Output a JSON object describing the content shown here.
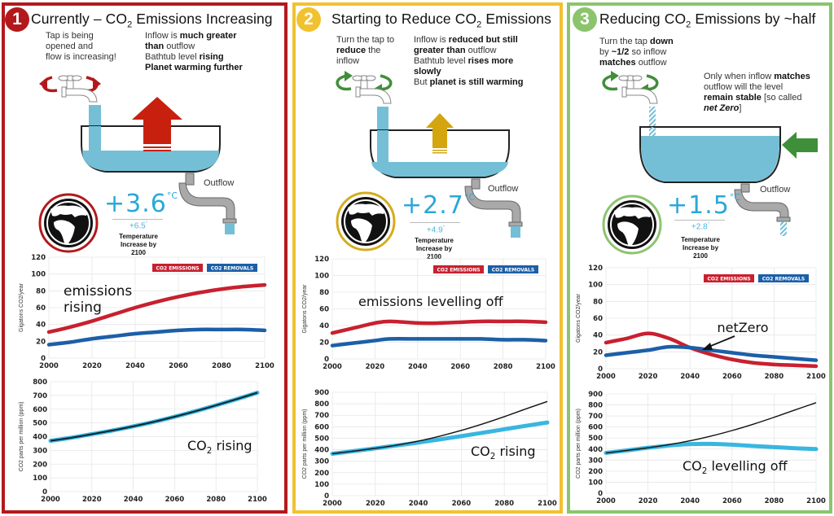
{
  "colors": {
    "panel1": "#b3191c",
    "panel2": "#f2c12e",
    "panel3": "#8cc46e",
    "emissions": "#c8202f",
    "removals": "#1c5fa8",
    "co2_line": "#38b6e0",
    "baseline": "#111111",
    "water": "#74bfd6",
    "temp": "#2aa8d8"
  },
  "panels": [
    {
      "number": "1",
      "title_pre": "Currently – CO",
      "title_sub": "2",
      "title_post": " Emissions Increasing",
      "tap_text": [
        "Tap is being",
        "opened and",
        "flow is increasing!"
      ],
      "desc": [
        [
          {
            "t": "Inflow is "
          },
          {
            "t": "much greater",
            "b": true
          }
        ],
        [
          {
            "t": "than",
            "b": true
          },
          {
            "t": " outflow"
          }
        ],
        [
          {
            "t": "Bathtub level "
          },
          {
            "t": "rising",
            "b": true
          }
        ],
        [
          {
            "t": "Planet warming further",
            "b": true
          }
        ]
      ],
      "outflow_label": "Outflow",
      "temp_main": "+3.6",
      "temp_unit": "°C",
      "temp_high": "+6.5",
      "temp_high_unit": "°",
      "temp_label": [
        "Temperature",
        "Increase by",
        "2100"
      ],
      "arrow_icon": "up-arrow-red"
    },
    {
      "number": "2",
      "title_pre": "Starting to Reduce CO",
      "title_sub": "2",
      "title_post": " Emissions",
      "tap_text": [
        [
          {
            "t": "Turn the tap to"
          }
        ],
        [
          {
            "t": "reduce",
            "b": true
          },
          {
            "t": " the"
          }
        ],
        [
          {
            "t": "inflow"
          }
        ]
      ],
      "desc": [
        [
          {
            "t": "Inflow is "
          },
          {
            "t": "reduced but still",
            "b": true
          }
        ],
        [
          {
            "t": "greater than",
            "b": true
          },
          {
            "t": " outflow"
          }
        ],
        [
          {
            "t": "Bathtub level "
          },
          {
            "t": "rises more",
            "b": true
          }
        ],
        [
          {
            "t": "slowly",
            "b": true
          }
        ],
        [
          {
            "t": "But "
          },
          {
            "t": "planet is still warming",
            "b": true
          }
        ]
      ],
      "outflow_label": "Outflow",
      "temp_main": "+2.7",
      "temp_unit": "°C",
      "temp_high": "+4.9",
      "temp_high_unit": "°",
      "temp_label": [
        "Temperature",
        "Increase by",
        "2100"
      ],
      "arrow_icon": "up-arrow-yellow"
    },
    {
      "number": "3",
      "title_pre": "Reducing CO",
      "title_sub": "2",
      "title_post": " Emissions by ~half",
      "tap_text": [
        [
          {
            "t": "Turn the tap "
          },
          {
            "t": "down",
            "b": true
          }
        ],
        [
          {
            "t": "by "
          },
          {
            "t": "~1/2",
            "b": true
          },
          {
            "t": " so  inflow"
          }
        ],
        [
          {
            "t": "matches",
            "b": true
          },
          {
            "t": " outflow"
          }
        ]
      ],
      "desc": [
        [
          {
            "t": "Only when inflow "
          },
          {
            "t": "matches",
            "b": true
          }
        ],
        [
          {
            "t": "outflow will the level"
          }
        ],
        [
          {
            "t": "remain stable",
            "b": true
          },
          {
            "t": " [so called"
          }
        ],
        [
          {
            "t": "net Zero",
            "b": true,
            "i": true
          },
          {
            "t": "]"
          }
        ]
      ],
      "outflow_label": "Outflow",
      "temp_main": "+1.5",
      "temp_unit": "°C",
      "temp_high": "+2.8",
      "temp_high_unit": "°",
      "temp_label": [
        "Temperature",
        "Increase by",
        "2100"
      ],
      "arrow_icon": "left-arrow-green"
    }
  ],
  "chart_data": [
    {
      "type": "line",
      "panel": 1,
      "ylabel": "Gigatons CO2/year",
      "xlim": [
        2000,
        2100
      ],
      "ylim": [
        0,
        120
      ],
      "xticks": [
        2000,
        2020,
        2040,
        2060,
        2080,
        2100
      ],
      "yticks": [
        0,
        20,
        40,
        60,
        80,
        100,
        120
      ],
      "grid": true,
      "legend": [
        "CO2 EMISSIONS",
        "CO2 REMOVALS"
      ],
      "legend_position": "top-right",
      "annotation": [
        "emissions",
        "rising"
      ],
      "x": [
        2000,
        2010,
        2020,
        2030,
        2040,
        2050,
        2060,
        2070,
        2080,
        2090,
        2100
      ],
      "series": [
        {
          "name": "CO2 EMISSIONS",
          "values": [
            31,
            37,
            44,
            52,
            60,
            67,
            73,
            78,
            82,
            85,
            87
          ]
        },
        {
          "name": "CO2 REMOVALS",
          "values": [
            16,
            19,
            23,
            26,
            29,
            31,
            33,
            34,
            34,
            34,
            33
          ]
        }
      ]
    },
    {
      "type": "line",
      "panel": 1,
      "ylabel": "CO2 parts per million (ppm)",
      "xlim": [
        2000,
        2100
      ],
      "ylim": [
        0,
        800
      ],
      "xticks": [
        2000,
        2020,
        2040,
        2060,
        2080,
        2100
      ],
      "yticks": [
        0,
        100,
        200,
        300,
        400,
        500,
        600,
        700,
        800
      ],
      "grid": true,
      "annotation_pre": "CO",
      "annotation_sub": "2",
      "annotation_post": " rising",
      "x": [
        2000,
        2010,
        2020,
        2030,
        2040,
        2050,
        2060,
        2070,
        2080,
        2090,
        2100
      ],
      "series": [
        {
          "name": "CO2 ppm",
          "values": [
            370,
            392,
            418,
            445,
            475,
            508,
            545,
            585,
            628,
            673,
            720
          ]
        }
      ]
    },
    {
      "type": "line",
      "panel": 2,
      "ylabel": "Gigatons CO2/year",
      "xlim": [
        2000,
        2100
      ],
      "ylim": [
        0,
        120
      ],
      "xticks": [
        2000,
        2020,
        2040,
        2060,
        2080,
        2100
      ],
      "yticks": [
        0,
        20,
        40,
        60,
        80,
        100,
        120
      ],
      "grid": true,
      "legend": [
        "CO2 EMISSIONS",
        "CO2 REMOVALS"
      ],
      "legend_position": "top-right",
      "annotation": [
        "emissions levelling off"
      ],
      "x": [
        2000,
        2010,
        2020,
        2027,
        2040,
        2050,
        2060,
        2070,
        2080,
        2090,
        2100
      ],
      "series": [
        {
          "name": "CO2 EMISSIONS",
          "values": [
            31,
            37,
            43,
            45,
            43,
            43,
            44,
            45,
            45,
            45,
            44
          ]
        },
        {
          "name": "CO2 REMOVALS",
          "values": [
            16,
            19,
            22,
            24,
            24,
            24,
            24,
            24,
            23,
            23,
            22
          ]
        }
      ]
    },
    {
      "type": "line",
      "panel": 2,
      "ylabel": "CO2 parts per million (ppm)",
      "xlim": [
        2000,
        2100
      ],
      "ylim": [
        0,
        900
      ],
      "xticks": [
        2000,
        2020,
        2040,
        2060,
        2080,
        2100
      ],
      "yticks": [
        0,
        100,
        200,
        300,
        400,
        500,
        600,
        700,
        800,
        900
      ],
      "grid": true,
      "annotation_pre": "CO",
      "annotation_sub": "2",
      "annotation_post": " rising",
      "x": [
        2000,
        2010,
        2020,
        2030,
        2040,
        2050,
        2060,
        2070,
        2080,
        2090,
        2100
      ],
      "series": [
        {
          "name": "CO2 ppm",
          "values": [
            365,
            388,
            412,
            437,
            462,
            490,
            518,
            548,
            578,
            608,
            637
          ]
        },
        {
          "name": "Baseline",
          "values": [
            365,
            388,
            412,
            440,
            475,
            518,
            568,
            625,
            688,
            755,
            820
          ]
        }
      ]
    },
    {
      "type": "line",
      "panel": 3,
      "ylabel": "Gigatons CO2/year",
      "xlim": [
        2000,
        2100
      ],
      "ylim": [
        0,
        120
      ],
      "xticks": [
        2000,
        2020,
        2040,
        2060,
        2080,
        2100
      ],
      "yticks": [
        0,
        20,
        40,
        60,
        80,
        100,
        120
      ],
      "grid": true,
      "legend": [
        "CO2 EMISSIONS",
        "CO2 REMOVALS"
      ],
      "legend_position": "top-right",
      "annotation": [
        "netZero"
      ],
      "x": [
        2000,
        2010,
        2020,
        2030,
        2040,
        2050,
        2060,
        2070,
        2080,
        2090,
        2100
      ],
      "series": [
        {
          "name": "CO2 EMISSIONS",
          "values": [
            31,
            36,
            42,
            36,
            25,
            17,
            11,
            7,
            5,
            4,
            3
          ]
        },
        {
          "name": "CO2 REMOVALS",
          "values": [
            16,
            19,
            22,
            26,
            25,
            22,
            19,
            16,
            14,
            12,
            10
          ]
        }
      ]
    },
    {
      "type": "line",
      "panel": 3,
      "ylabel": "CO2 parts per million (ppm)",
      "xlim": [
        2000,
        2100
      ],
      "ylim": [
        0,
        900
      ],
      "xticks": [
        2000,
        2020,
        2040,
        2060,
        2080,
        2100
      ],
      "yticks": [
        0,
        100,
        200,
        300,
        400,
        500,
        600,
        700,
        800,
        900
      ],
      "grid": true,
      "annotation_pre": "CO",
      "annotation_sub": "2",
      "annotation_post": " levelling off",
      "x": [
        2000,
        2010,
        2020,
        2030,
        2040,
        2050,
        2060,
        2070,
        2080,
        2090,
        2100
      ],
      "series": [
        {
          "name": "CO2 ppm",
          "values": [
            365,
            388,
            412,
            432,
            445,
            447,
            440,
            428,
            418,
            408,
            400
          ]
        },
        {
          "name": "Baseline",
          "values": [
            365,
            388,
            412,
            440,
            475,
            518,
            568,
            625,
            688,
            755,
            820
          ]
        }
      ]
    }
  ]
}
